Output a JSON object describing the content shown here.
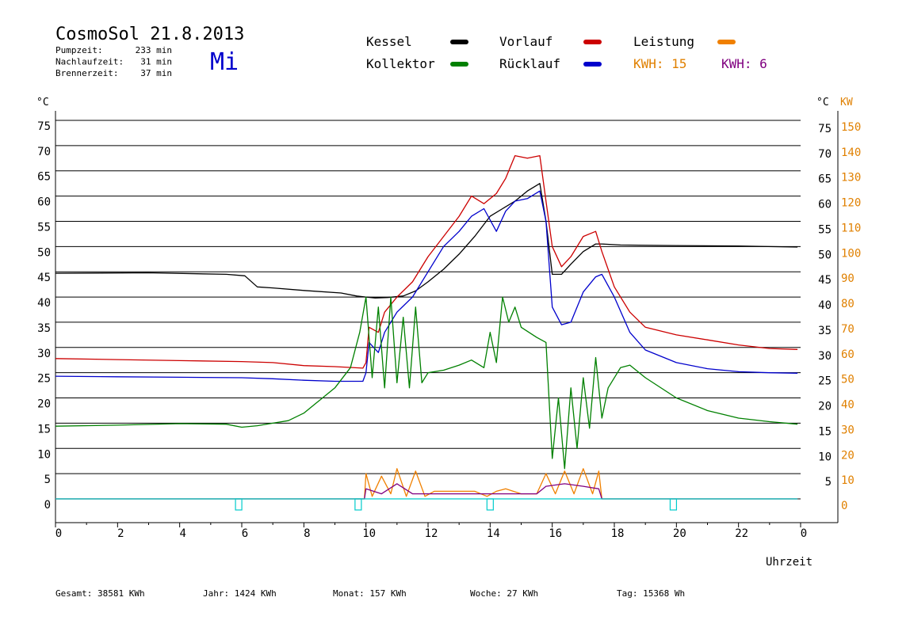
{
  "header": {
    "title": "CosmoSol 21.8.2013",
    "weekday": "Mi",
    "stats": [
      {
        "label": "Pumpzeit:",
        "value": "233 min"
      },
      {
        "label": "Nachlaufzeit:",
        "value": "31 min"
      },
      {
        "label": "Brennerzeit:",
        "value": "37 min"
      }
    ]
  },
  "legend": {
    "items": [
      {
        "label": "Kessel",
        "color": "#000000"
      },
      {
        "label": "Vorlauf",
        "color": "#cc0000"
      },
      {
        "label": "Leistung",
        "color": "#f08000"
      },
      {
        "label": "Kollektor",
        "color": "#008000"
      },
      {
        "label": "Rücklauf",
        "color": "#0000cc"
      }
    ],
    "kwh1": {
      "label": "KWH: 15",
      "color": "#e08000"
    },
    "kwh2": {
      "label": "KWH: 6",
      "color": "#800080"
    }
  },
  "axes": {
    "left_unit": "°C",
    "right_unit_temp": "°C",
    "right_unit_power": "KW",
    "x_label": "Uhrzeit"
  },
  "footer": {
    "items": [
      {
        "label": "Gesamt:",
        "value": "38581 KWh"
      },
      {
        "label": "Jahr:",
        "value": "1424 KWh"
      },
      {
        "label": "Monat:",
        "value": "157 KWh"
      },
      {
        "label": "Woche:",
        "value": "27 KWh"
      },
      {
        "label": "Tag:",
        "value": "15368 Wh"
      }
    ]
  },
  "chart_data": {
    "type": "line",
    "title": "CosmoSol 21.8.2013",
    "xlabel": "Uhrzeit",
    "ylabel": "°C",
    "y2label": "KW",
    "xlim": [
      0,
      24
    ],
    "ylim": [
      0,
      75
    ],
    "y2lim": [
      0,
      150
    ],
    "x_ticks": [
      "0",
      "2",
      "4",
      "6",
      "8",
      "10",
      "12",
      "14",
      "16",
      "18",
      "20",
      "22",
      "0"
    ],
    "y_ticks": [
      0,
      5,
      10,
      15,
      20,
      25,
      30,
      35,
      40,
      45,
      50,
      55,
      60,
      65,
      70,
      75
    ],
    "y2_ticks": [
      0,
      10,
      20,
      30,
      40,
      50,
      60,
      70,
      80,
      90,
      100,
      110,
      120,
      130,
      140,
      150
    ],
    "grid": true,
    "legend_position": "top",
    "series": [
      {
        "name": "Kessel",
        "color": "#000000",
        "points": [
          [
            0,
            44.7
          ],
          [
            3,
            44.8
          ],
          [
            5.5,
            44.5
          ],
          [
            6.1,
            44.2
          ],
          [
            6.5,
            42.0
          ],
          [
            7,
            41.8
          ],
          [
            8,
            41.3
          ],
          [
            9.2,
            40.8
          ],
          [
            9.7,
            40.2
          ],
          [
            10.0,
            40.0
          ],
          [
            10.3,
            39.8
          ],
          [
            10.7,
            39.9
          ],
          [
            11.2,
            40.2
          ],
          [
            11.6,
            41.2
          ],
          [
            12.0,
            43.0
          ],
          [
            12.5,
            45.5
          ],
          [
            13.0,
            48.5
          ],
          [
            13.5,
            52.0
          ],
          [
            14.0,
            56.0
          ],
          [
            14.4,
            57.5
          ],
          [
            14.8,
            59.0
          ],
          [
            15.2,
            61.0
          ],
          [
            15.6,
            62.5
          ],
          [
            15.8,
            55.0
          ],
          [
            16.0,
            44.5
          ],
          [
            16.3,
            44.5
          ],
          [
            16.6,
            46.5
          ],
          [
            17.0,
            49.0
          ],
          [
            17.4,
            50.5
          ],
          [
            17.6,
            50.5
          ],
          [
            18.2,
            50.3
          ],
          [
            20,
            50.2
          ],
          [
            22,
            50.1
          ],
          [
            23.9,
            49.9
          ]
        ]
      },
      {
        "name": "Vorlauf",
        "color": "#cc0000",
        "points": [
          [
            0,
            27.8
          ],
          [
            2,
            27.6
          ],
          [
            4,
            27.4
          ],
          [
            6,
            27.2
          ],
          [
            7,
            27.0
          ],
          [
            8,
            26.4
          ],
          [
            9,
            26.2
          ],
          [
            9.9,
            25.9
          ],
          [
            10.0,
            27.0
          ],
          [
            10.1,
            34.0
          ],
          [
            10.4,
            33.0
          ],
          [
            10.6,
            37.0
          ],
          [
            11.0,
            40.0
          ],
          [
            11.5,
            43.0
          ],
          [
            12.0,
            48.0
          ],
          [
            12.5,
            52.0
          ],
          [
            13.0,
            56.0
          ],
          [
            13.4,
            60.0
          ],
          [
            13.8,
            58.5
          ],
          [
            14.2,
            60.5
          ],
          [
            14.5,
            63.5
          ],
          [
            14.8,
            68.0
          ],
          [
            15.2,
            67.5
          ],
          [
            15.6,
            68.0
          ],
          [
            15.8,
            59.0
          ],
          [
            16.0,
            50.0
          ],
          [
            16.3,
            46.0
          ],
          [
            16.6,
            48.0
          ],
          [
            17.0,
            52.0
          ],
          [
            17.4,
            53.0
          ],
          [
            17.6,
            49.0
          ],
          [
            18.0,
            42.0
          ],
          [
            18.5,
            37.0
          ],
          [
            19.0,
            34.0
          ],
          [
            20,
            32.5
          ],
          [
            21,
            31.5
          ],
          [
            22,
            30.5
          ],
          [
            23,
            29.8
          ],
          [
            23.9,
            29.6
          ]
        ]
      },
      {
        "name": "Rücklauf",
        "color": "#0000cc",
        "points": [
          [
            0,
            24.3
          ],
          [
            2,
            24.2
          ],
          [
            4,
            24.1
          ],
          [
            6,
            24.0
          ],
          [
            7,
            23.8
          ],
          [
            8,
            23.5
          ],
          [
            9,
            23.3
          ],
          [
            9.9,
            23.3
          ],
          [
            10.0,
            25.0
          ],
          [
            10.1,
            31.0
          ],
          [
            10.4,
            29.0
          ],
          [
            10.6,
            33.0
          ],
          [
            11.0,
            37.0
          ],
          [
            11.5,
            40.0
          ],
          [
            12.0,
            45.0
          ],
          [
            12.5,
            50.0
          ],
          [
            13.0,
            53.0
          ],
          [
            13.4,
            56.0
          ],
          [
            13.8,
            57.5
          ],
          [
            14.2,
            53.0
          ],
          [
            14.5,
            57.0
          ],
          [
            14.8,
            59.0
          ],
          [
            15.2,
            59.5
          ],
          [
            15.6,
            61.0
          ],
          [
            15.8,
            55.0
          ],
          [
            16.0,
            38.0
          ],
          [
            16.3,
            34.5
          ],
          [
            16.6,
            35.0
          ],
          [
            17.0,
            41.0
          ],
          [
            17.4,
            44.0
          ],
          [
            17.6,
            44.5
          ],
          [
            18.0,
            40.0
          ],
          [
            18.5,
            33.0
          ],
          [
            19.0,
            29.5
          ],
          [
            20,
            27.0
          ],
          [
            21,
            25.8
          ],
          [
            22,
            25.2
          ],
          [
            23,
            25.0
          ],
          [
            23.9,
            24.9
          ]
        ]
      },
      {
        "name": "Kollektor",
        "color": "#008000",
        "points": [
          [
            0,
            14.4
          ],
          [
            2,
            14.6
          ],
          [
            4,
            14.9
          ],
          [
            5.5,
            14.8
          ],
          [
            6.0,
            14.2
          ],
          [
            6.5,
            14.5
          ],
          [
            7,
            15.0
          ],
          [
            7.5,
            15.5
          ],
          [
            8,
            17.0
          ],
          [
            8.5,
            19.5
          ],
          [
            9,
            22.0
          ],
          [
            9.5,
            26.0
          ],
          [
            9.8,
            33.0
          ],
          [
            10.0,
            40.0
          ],
          [
            10.2,
            24.0
          ],
          [
            10.4,
            38.0
          ],
          [
            10.6,
            22.0
          ],
          [
            10.8,
            40.0
          ],
          [
            11.0,
            23.0
          ],
          [
            11.2,
            36.0
          ],
          [
            11.4,
            22.0
          ],
          [
            11.6,
            38.0
          ],
          [
            11.8,
            23.0
          ],
          [
            12.0,
            25.0
          ],
          [
            12.5,
            25.5
          ],
          [
            13.0,
            26.5
          ],
          [
            13.4,
            27.5
          ],
          [
            13.8,
            26.0
          ],
          [
            14.0,
            33.0
          ],
          [
            14.2,
            27.0
          ],
          [
            14.4,
            40.0
          ],
          [
            14.6,
            35.0
          ],
          [
            14.8,
            38.0
          ],
          [
            15.0,
            34.0
          ],
          [
            15.5,
            32.0
          ],
          [
            15.8,
            31.0
          ],
          [
            16.0,
            8.0
          ],
          [
            16.2,
            20.0
          ],
          [
            16.4,
            6.0
          ],
          [
            16.6,
            22.0
          ],
          [
            16.8,
            10.0
          ],
          [
            17.0,
            24.0
          ],
          [
            17.2,
            14.0
          ],
          [
            17.4,
            28.0
          ],
          [
            17.6,
            16.0
          ],
          [
            17.8,
            22.0
          ],
          [
            18.2,
            26.0
          ],
          [
            18.5,
            26.5
          ],
          [
            19.0,
            24.0
          ],
          [
            20,
            20.0
          ],
          [
            21,
            17.5
          ],
          [
            22,
            16.0
          ],
          [
            23,
            15.3
          ],
          [
            23.9,
            14.8
          ]
        ]
      },
      {
        "name": "Leistung",
        "color": "#f08000",
        "axis": "right_kw",
        "points": [
          [
            0,
            0
          ],
          [
            9.95,
            0
          ],
          [
            10.0,
            10
          ],
          [
            10.2,
            1
          ],
          [
            10.5,
            9
          ],
          [
            10.8,
            2
          ],
          [
            11.0,
            12
          ],
          [
            11.3,
            1
          ],
          [
            11.6,
            11
          ],
          [
            11.9,
            1
          ],
          [
            12.2,
            3
          ],
          [
            13.5,
            3
          ],
          [
            13.9,
            1
          ],
          [
            14.2,
            3
          ],
          [
            14.5,
            4
          ],
          [
            15.0,
            2
          ],
          [
            15.5,
            2
          ],
          [
            15.8,
            10
          ],
          [
            16.1,
            2
          ],
          [
            16.4,
            11
          ],
          [
            16.7,
            2
          ],
          [
            17.0,
            12
          ],
          [
            17.3,
            2
          ],
          [
            17.5,
            11
          ],
          [
            17.6,
            0
          ],
          [
            23.9,
            0
          ]
        ]
      },
      {
        "name": "KWH",
        "color": "#800080",
        "axis": "right_kw",
        "points": [
          [
            0,
            0
          ],
          [
            9.95,
            0
          ],
          [
            10.0,
            4
          ],
          [
            10.5,
            2
          ],
          [
            11.0,
            6
          ],
          [
            11.5,
            2
          ],
          [
            12.0,
            2
          ],
          [
            13.5,
            2
          ],
          [
            14.5,
            2
          ],
          [
            15.5,
            2
          ],
          [
            15.8,
            5
          ],
          [
            16.4,
            6
          ],
          [
            17.0,
            5
          ],
          [
            17.5,
            4
          ],
          [
            17.6,
            0
          ],
          [
            23.9,
            0
          ]
        ]
      },
      {
        "name": "Pumpe",
        "color": "#00cccc",
        "axis": "right_kw",
        "points": [
          [
            0,
            0
          ],
          [
            23.9,
            0
          ]
        ]
      }
    ]
  }
}
